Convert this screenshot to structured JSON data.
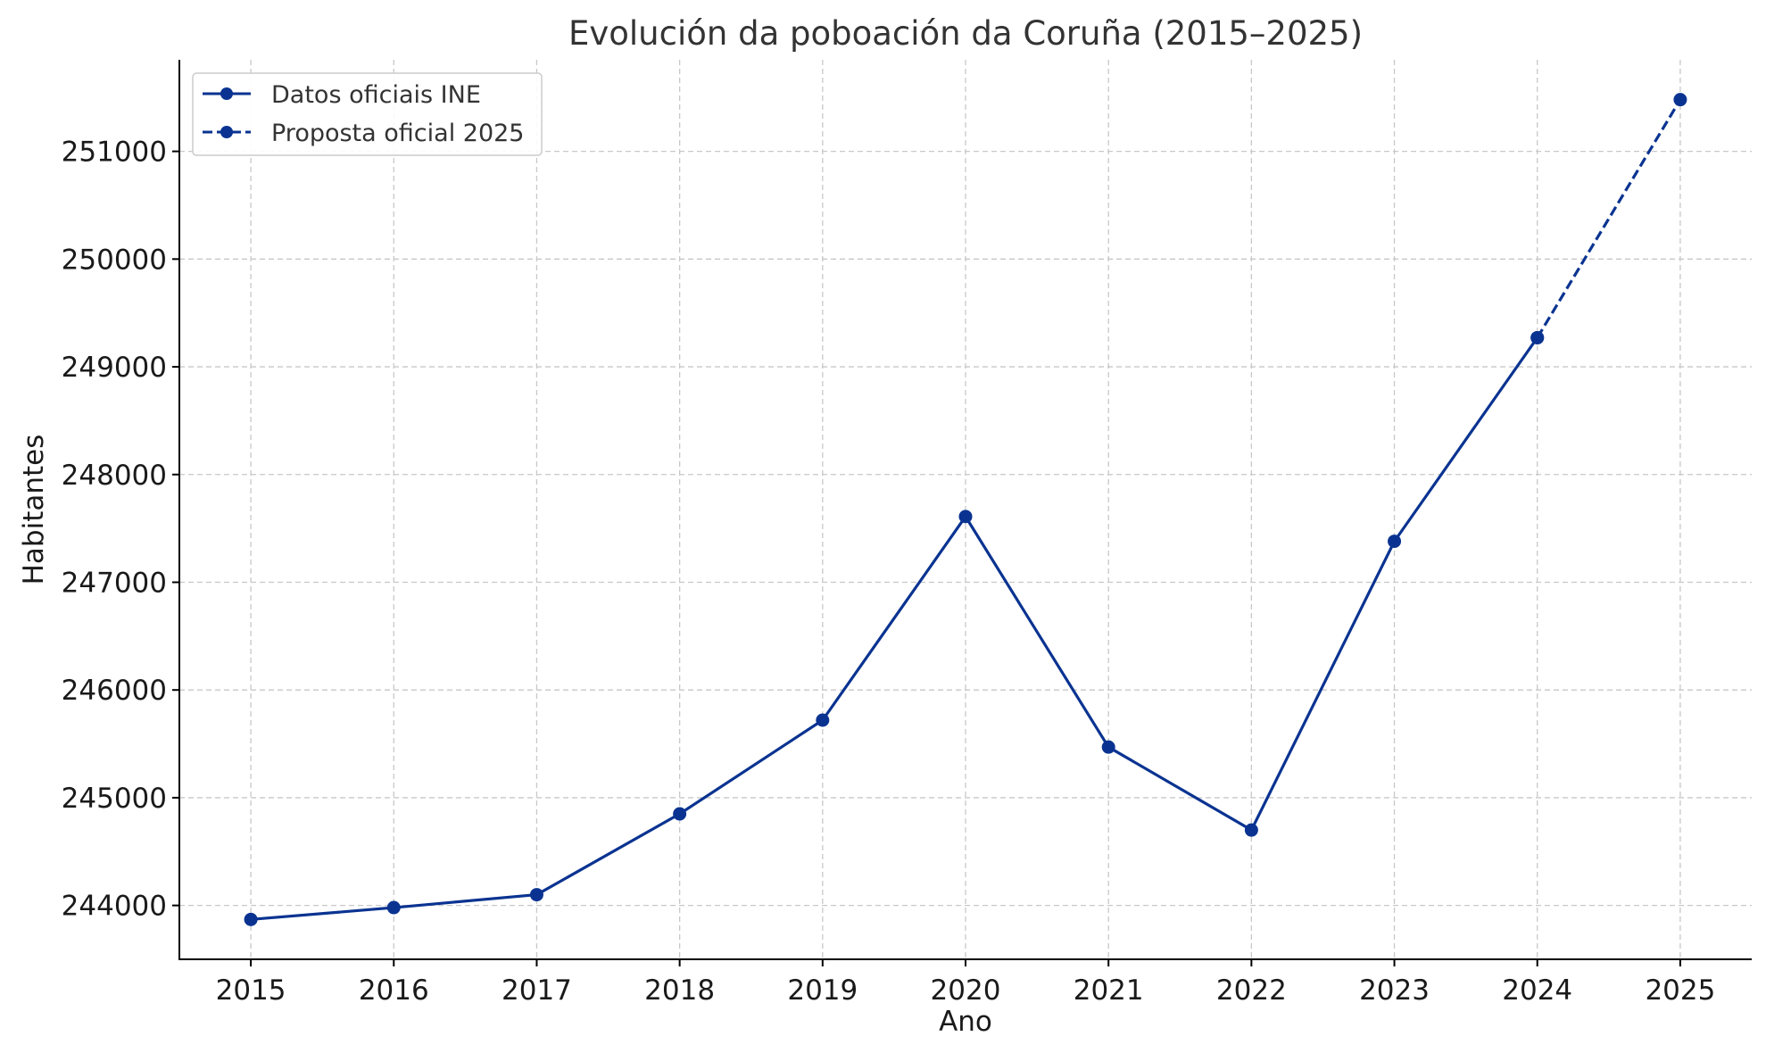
{
  "chart_data": {
    "type": "line",
    "title": "Evolución da poboación da Coruña (2015–2025)",
    "xlabel": "Ano",
    "ylabel": "Habitantes",
    "x": [
      2015,
      2016,
      2017,
      2018,
      2019,
      2020,
      2021,
      2022,
      2023,
      2024,
      2025
    ],
    "xlim": [
      2014.5,
      2025.5
    ],
    "ylim": [
      243500,
      251850
    ],
    "yticks": [
      244000,
      245000,
      246000,
      247000,
      248000,
      249000,
      250000,
      251000
    ],
    "grid": true,
    "legend_position": "top-left",
    "series": [
      {
        "name": "Datos oficiais INE",
        "style": "solid",
        "color": "#0a3391",
        "x": [
          2015,
          2016,
          2017,
          2018,
          2019,
          2020,
          2021,
          2022,
          2023,
          2024
        ],
        "values": [
          243870,
          243980,
          244100,
          244850,
          245720,
          247610,
          245470,
          244700,
          247380,
          249270
        ]
      },
      {
        "name": "Proposta oficial 2025",
        "style": "dashed",
        "color": "#0a3391",
        "x": [
          2024,
          2025
        ],
        "values": [
          249270,
          251480
        ]
      }
    ]
  }
}
